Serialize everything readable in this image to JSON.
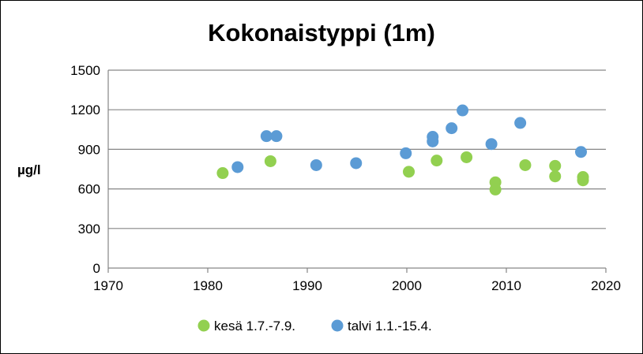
{
  "chart_data": {
    "type": "scatter",
    "title": "Kokonaistyppi (1m)",
    "xlabel": "",
    "ylabel": "µg/l",
    "xlim": [
      1970,
      2020
    ],
    "ylim": [
      0,
      1500
    ],
    "xticks": [
      1970,
      1980,
      1990,
      2000,
      2010,
      2020
    ],
    "yticks": [
      0,
      300,
      600,
      900,
      1200,
      1500
    ],
    "grid": "horizontal",
    "legend_position": "bottom",
    "series": [
      {
        "name": "kesä 1.7.-7.9.",
        "color": "#92D050",
        "points": [
          {
            "x": 1981.5,
            "y": 720
          },
          {
            "x": 1986.3,
            "y": 810
          },
          {
            "x": 2000.2,
            "y": 730
          },
          {
            "x": 2003.0,
            "y": 815
          },
          {
            "x": 2006.0,
            "y": 840
          },
          {
            "x": 2008.9,
            "y": 650
          },
          {
            "x": 2008.9,
            "y": 595
          },
          {
            "x": 2011.9,
            "y": 780
          },
          {
            "x": 2014.9,
            "y": 775
          },
          {
            "x": 2014.9,
            "y": 695
          },
          {
            "x": 2017.7,
            "y": 690
          },
          {
            "x": 2017.7,
            "y": 665
          }
        ]
      },
      {
        "name": "talvi 1.1.-15.4.",
        "color": "#5B9BD5",
        "points": [
          {
            "x": 1983.0,
            "y": 765
          },
          {
            "x": 1985.9,
            "y": 1000
          },
          {
            "x": 1986.9,
            "y": 1000
          },
          {
            "x": 1990.9,
            "y": 780
          },
          {
            "x": 1994.9,
            "y": 795
          },
          {
            "x": 1999.9,
            "y": 870
          },
          {
            "x": 2002.6,
            "y": 995
          },
          {
            "x": 2002.6,
            "y": 960
          },
          {
            "x": 2004.5,
            "y": 1060
          },
          {
            "x": 2005.6,
            "y": 1195
          },
          {
            "x": 2008.5,
            "y": 940
          },
          {
            "x": 2011.4,
            "y": 1100
          },
          {
            "x": 2017.5,
            "y": 880
          }
        ]
      }
    ]
  }
}
